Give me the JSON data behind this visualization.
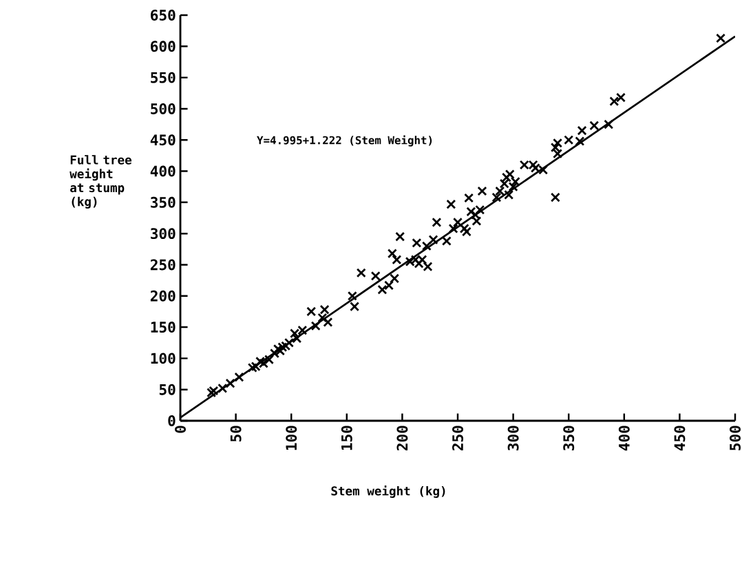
{
  "chart_data": {
    "type": "scatter",
    "xlabel": "Stem weight (kg)",
    "ylabel": "Full tree weight at stump (kg)",
    "annotations": [
      "Y=4.995+1.222 (Stem Weight)"
    ],
    "xlim": [
      0,
      500
    ],
    "ylim": [
      0,
      650
    ],
    "xticks": [
      0,
      50,
      100,
      150,
      200,
      250,
      300,
      350,
      400,
      450,
      500
    ],
    "yticks": [
      0,
      50,
      100,
      150,
      200,
      250,
      300,
      350,
      400,
      450,
      500,
      550,
      600,
      650
    ],
    "grid": false,
    "series": [
      {
        "color": "#000000",
        "marker": "cross",
        "x": [
          28,
          30,
          38,
          45,
          53,
          65,
          68,
          72,
          75,
          80,
          85,
          88,
          90,
          92,
          95,
          98,
          103,
          105,
          110,
          118,
          122,
          128,
          130,
          133,
          155,
          157,
          163,
          176,
          182,
          188,
          191,
          193,
          195,
          198,
          207,
          212,
          213,
          215,
          218,
          222,
          223,
          228,
          231,
          240,
          244,
          246,
          250,
          256,
          258,
          260,
          262,
          266,
          267,
          270,
          272,
          285,
          288,
          292,
          294,
          296,
          297,
          300,
          302,
          310,
          318,
          320,
          327,
          338,
          338,
          340,
          340,
          350,
          360,
          362,
          373,
          386,
          391,
          397,
          487
        ],
        "values": [
          45,
          48,
          52,
          60,
          70,
          85,
          87,
          95,
          92,
          98,
          108,
          115,
          112,
          118,
          120,
          125,
          140,
          132,
          145,
          175,
          152,
          165,
          178,
          158,
          200,
          183,
          237,
          232,
          210,
          217,
          268,
          228,
          258,
          295,
          255,
          258,
          285,
          252,
          258,
          280,
          247,
          290,
          318,
          288,
          347,
          308,
          318,
          308,
          303,
          357,
          335,
          330,
          320,
          338,
          368,
          358,
          368,
          380,
          390,
          362,
          395,
          375,
          383,
          410,
          410,
          405,
          402,
          358,
          438,
          445,
          428,
          450,
          448,
          465,
          473,
          475,
          512,
          518,
          613
        ]
      },
      {
        "type": "line",
        "color": "#000000",
        "marker": "none",
        "line_style": "solid",
        "x": [
          0,
          500
        ],
        "values": [
          5,
          616
        ]
      }
    ]
  }
}
